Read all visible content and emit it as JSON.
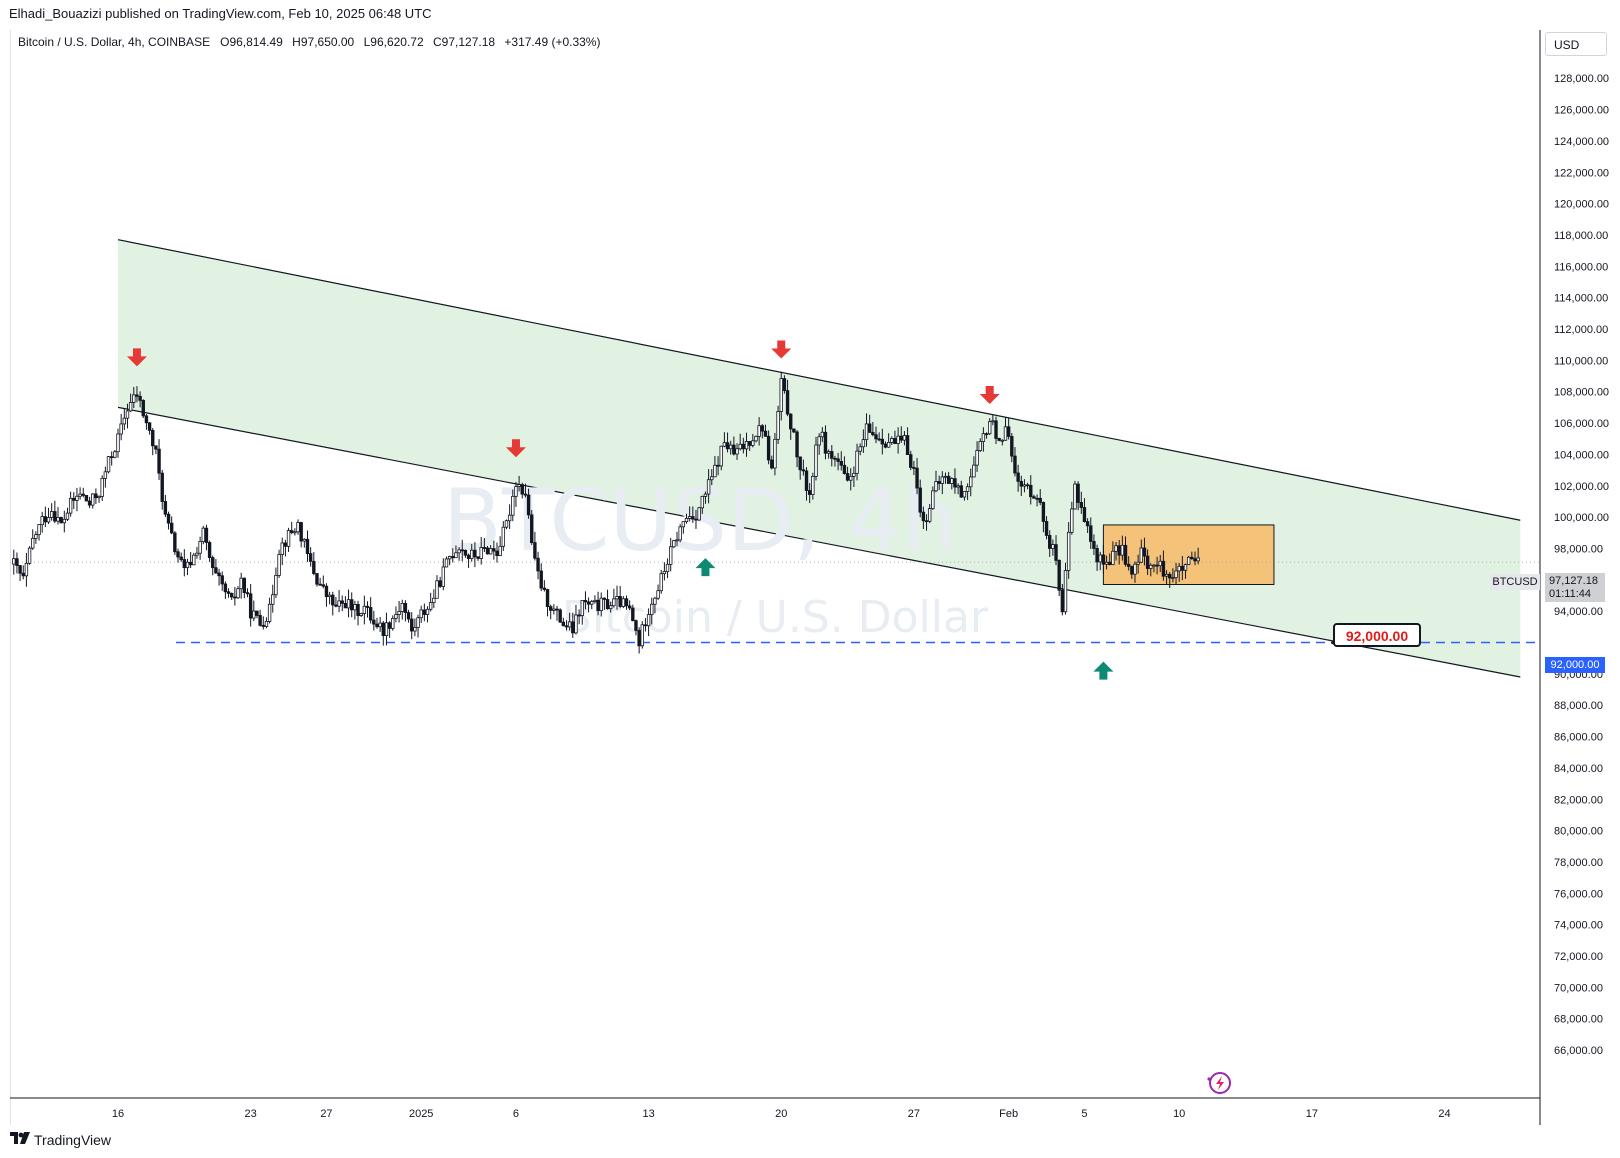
{
  "header": {
    "caption": "Elhadi_Bouazizi published on TradingView.com, Feb 10, 2025 06:48 UTC"
  },
  "legend": {
    "instrument": "Bitcoin / U.S. Dollar, 4h, COINBASE",
    "open_label": "O",
    "open": "96,814.49",
    "high_label": "H",
    "high": "97,650.00",
    "low_label": "L",
    "low": "96,620.72",
    "close_label": "C",
    "close": "97,127.18",
    "change": "+317.49 (+0.33%)"
  },
  "currency_button": "USD",
  "watermark": {
    "symbol": "BTCUSD, 4h",
    "name": "Bitcoin / U.S. Dollar"
  },
  "tags": {
    "symbol": "BTCUSD",
    "last_price": "97,127.18",
    "countdown": "01:11:44",
    "level": "92,000.00"
  },
  "callout_label": "92,000.00",
  "footer": {
    "brand": "TradingView",
    "logo_icon": "tradingview-logo-icon"
  },
  "colors": {
    "channel_fill": "#e1f2e3",
    "zone_fill": "#f5c27a",
    "arrow_down": "#e53935",
    "arrow_up": "#0c8a73",
    "level_line": "#2962ff",
    "candle": "#131722"
  },
  "chart_data": {
    "type": "candlestick",
    "symbol": "BTCUSD",
    "interval": "4h",
    "exchange": "COINBASE",
    "y_axis": {
      "range": [
        65000,
        130000
      ],
      "ticks": [
        "128,000.00",
        "126,000.00",
        "124,000.00",
        "122,000.00",
        "120,000.00",
        "118,000.00",
        "116,000.00",
        "114,000.00",
        "112,000.00",
        "110,000.00",
        "108,000.00",
        "106,000.00",
        "104,000.00",
        "102,000.00",
        "100,000.00",
        "98,000.00",
        "94,000.00",
        "90,000.00",
        "88,000.00",
        "86,000.00",
        "84,000.00",
        "82,000.00",
        "80,000.00",
        "78,000.00",
        "76,000.00",
        "74,000.00",
        "72,000.00",
        "70,000.00",
        "68,000.00",
        "66,000.00"
      ]
    },
    "x_axis": {
      "ticks": [
        {
          "label": "16",
          "day": 16
        },
        {
          "label": "23",
          "day": 23
        },
        {
          "label": "27",
          "day": 27
        },
        {
          "label": "2025",
          "day": 32
        },
        {
          "label": "6",
          "day": 37
        },
        {
          "label": "13",
          "day": 44
        },
        {
          "label": "20",
          "day": 51
        },
        {
          "label": "27",
          "day": 58
        },
        {
          "label": "Feb",
          "day": 63
        },
        {
          "label": "5",
          "day": 67
        },
        {
          "label": "10",
          "day": 72
        },
        {
          "label": "17",
          "day": 79
        },
        {
          "label": "24",
          "day": 86
        }
      ],
      "note": "day = days since Dec 1, 2024 (approx.)"
    },
    "price_path": [
      [
        10.5,
        97000
      ],
      [
        11,
        96000
      ],
      [
        11.5,
        98500
      ],
      [
        12,
        99800
      ],
      [
        12.5,
        100500
      ],
      [
        13,
        99500
      ],
      [
        13.5,
        100800
      ],
      [
        14,
        101500
      ],
      [
        14.5,
        100800
      ],
      [
        15,
        101600
      ],
      [
        15.5,
        103500
      ],
      [
        16,
        105000
      ],
      [
        16.5,
        107000
      ],
      [
        17,
        107800
      ],
      [
        17.5,
        106000
      ],
      [
        18,
        104000
      ],
      [
        18.5,
        100000
      ],
      [
        19,
        98000
      ],
      [
        19.5,
        96500
      ],
      [
        20,
        97500
      ],
      [
        20.5,
        99000
      ],
      [
        21,
        96500
      ],
      [
        21.5,
        95500
      ],
      [
        22,
        94500
      ],
      [
        22.5,
        96000
      ],
      [
        23,
        94000
      ],
      [
        23.5,
        93200
      ],
      [
        24,
        94000
      ],
      [
        24.5,
        98000
      ],
      [
        25,
        98800
      ],
      [
        25.5,
        99500
      ],
      [
        26,
        97500
      ],
      [
        26.5,
        96000
      ],
      [
        27,
        95000
      ],
      [
        27.5,
        94200
      ],
      [
        28,
        94600
      ],
      [
        28.5,
        94000
      ],
      [
        29,
        94200
      ],
      [
        29.5,
        93400
      ],
      [
        30,
        92800
      ],
      [
        30.5,
        93600
      ],
      [
        31,
        94500
      ],
      [
        31.5,
        92700
      ],
      [
        32,
        93800
      ],
      [
        32.5,
        94500
      ],
      [
        33,
        96000
      ],
      [
        33.5,
        97500
      ],
      [
        34,
        98200
      ],
      [
        34.5,
        97500
      ],
      [
        35,
        97600
      ],
      [
        35.5,
        98000
      ],
      [
        36,
        97800
      ],
      [
        36.5,
        99500
      ],
      [
        37,
        102300
      ],
      [
        37.5,
        101500
      ],
      [
        38,
        97000
      ],
      [
        38.5,
        95000
      ],
      [
        39,
        94000
      ],
      [
        39.5,
        93200
      ],
      [
        40,
        92800
      ],
      [
        40.5,
        94500
      ],
      [
        41,
        94300
      ],
      [
        41.5,
        94400
      ],
      [
        42,
        94500
      ],
      [
        42.5,
        94600
      ],
      [
        43,
        94000
      ],
      [
        43.5,
        92000
      ],
      [
        44,
        94200
      ],
      [
        44.5,
        95500
      ],
      [
        45,
        97200
      ],
      [
        45.5,
        98800
      ],
      [
        46,
        100000
      ],
      [
        46.5,
        100200
      ],
      [
        47,
        101500
      ],
      [
        47.5,
        103000
      ],
      [
        48,
        104800
      ],
      [
        48.5,
        104000
      ],
      [
        49,
        104500
      ],
      [
        49.5,
        105200
      ],
      [
        50,
        105800
      ],
      [
        50.5,
        103000
      ],
      [
        51,
        108500
      ],
      [
        51.5,
        106000
      ],
      [
        52,
        103000
      ],
      [
        52.5,
        101500
      ],
      [
        53,
        105500
      ],
      [
        53.5,
        104000
      ],
      [
        54,
        103500
      ],
      [
        54.5,
        102000
      ],
      [
        55,
        103800
      ],
      [
        55.5,
        105500
      ],
      [
        56,
        105200
      ],
      [
        56.5,
        104900
      ],
      [
        57,
        104700
      ],
      [
        57.5,
        104800
      ],
      [
        58,
        103000
      ],
      [
        58.5,
        99500
      ],
      [
        59,
        101500
      ],
      [
        59.5,
        102500
      ],
      [
        60,
        102300
      ],
      [
        60.5,
        101500
      ],
      [
        61,
        102500
      ],
      [
        61.5,
        104500
      ],
      [
        62,
        106200
      ],
      [
        62.5,
        105000
      ],
      [
        63,
        105500
      ],
      [
        63.5,
        102000
      ],
      [
        64,
        101800
      ],
      [
        64.5,
        101500
      ],
      [
        65,
        99000
      ],
      [
        65.5,
        97300
      ],
      [
        65.8,
        93000
      ],
      [
        66.1,
        98000
      ],
      [
        66.5,
        102000
      ],
      [
        67,
        100000
      ],
      [
        67.5,
        97800
      ],
      [
        68,
        97000
      ],
      [
        68.5,
        97600
      ],
      [
        69,
        98000
      ],
      [
        69.5,
        96200
      ],
      [
        70,
        97700
      ],
      [
        70.5,
        96900
      ],
      [
        71,
        96800
      ],
      [
        71.5,
        96300
      ],
      [
        72,
        96500
      ],
      [
        72.5,
        97000
      ],
      [
        73,
        97127
      ]
    ],
    "annotations": {
      "channel": {
        "upper_line": [
          [
            16,
            117700
          ],
          [
            90,
            99800
          ]
        ],
        "lower_line": [
          [
            16,
            107000
          ],
          [
            90,
            89800
          ]
        ]
      },
      "resistance_arrows": [
        [
          17,
          110000
        ],
        [
          37,
          104200
        ],
        [
          51,
          110500
        ],
        [
          62,
          107600
        ]
      ],
      "support_arrows": [
        [
          47,
          97000
        ],
        [
          68,
          90400
        ]
      ],
      "consolidation_zone": {
        "x": [
          68,
          77
        ],
        "y": [
          95700,
          99500
        ]
      },
      "horizontal_level": 92000,
      "level_callout": "92,000.00",
      "last_price": 97127.18
    }
  }
}
